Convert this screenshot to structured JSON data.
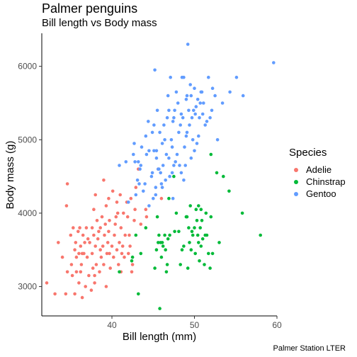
{
  "chart_data": {
    "type": "scatter",
    "title": "Palmer penguins",
    "subtitle": "Bill length vs Body mass",
    "caption": "Palmer Station LTER",
    "xlabel": "Bill length (mm)",
    "ylabel": "Body mass (g)",
    "xlim": [
      31.5,
      60
    ],
    "ylim": [
      2600,
      6450
    ],
    "xticks": [
      40,
      50,
      60
    ],
    "yticks": [
      3000,
      4000,
      5000,
      6000
    ],
    "grid": false,
    "legend": {
      "title": "Species",
      "position": "right"
    },
    "series": [
      {
        "name": "Adelie",
        "color": "#F8766D",
        "points": [
          [
            32.1,
            3050
          ],
          [
            33.1,
            2900
          ],
          [
            33.5,
            3600
          ],
          [
            34.0,
            3400
          ],
          [
            34.4,
            2900
          ],
          [
            34.5,
            4100
          ],
          [
            34.6,
            4400
          ],
          [
            34.6,
            3200
          ],
          [
            35.0,
            3700
          ],
          [
            35.1,
            3300
          ],
          [
            35.2,
            3150
          ],
          [
            35.3,
            3800
          ],
          [
            35.5,
            3500
          ],
          [
            35.5,
            2900
          ],
          [
            35.6,
            3600
          ],
          [
            35.7,
            3400
          ],
          [
            35.9,
            3750
          ],
          [
            36.0,
            3050
          ],
          [
            36.0,
            3450
          ],
          [
            36.1,
            3800
          ],
          [
            36.2,
            3550
          ],
          [
            36.2,
            3200
          ],
          [
            36.3,
            3300
          ],
          [
            36.4,
            2850
          ],
          [
            36.5,
            3700
          ],
          [
            36.6,
            3450
          ],
          [
            36.7,
            3600
          ],
          [
            36.8,
            3000
          ],
          [
            36.9,
            3800
          ],
          [
            37.0,
            3400
          ],
          [
            37.2,
            3150
          ],
          [
            37.3,
            3600
          ],
          [
            37.5,
            2950
          ],
          [
            37.6,
            3800
          ],
          [
            37.6,
            3450
          ],
          [
            37.7,
            3250
          ],
          [
            37.8,
            3700
          ],
          [
            37.8,
            4050
          ],
          [
            37.9,
            3050
          ],
          [
            38.0,
            3550
          ],
          [
            38.1,
            3300
          ],
          [
            38.2,
            3900
          ],
          [
            38.3,
            3650
          ],
          [
            38.5,
            3200
          ],
          [
            38.6,
            3500
          ],
          [
            38.6,
            3800
          ],
          [
            38.7,
            3400
          ],
          [
            38.8,
            3950
          ],
          [
            38.9,
            3550
          ],
          [
            39.0,
            3300
          ],
          [
            39.0,
            4450
          ],
          [
            39.1,
            3700
          ],
          [
            39.2,
            3850
          ],
          [
            39.3,
            3000
          ],
          [
            39.4,
            3450
          ],
          [
            39.5,
            3600
          ],
          [
            39.6,
            4200
          ],
          [
            39.6,
            3750
          ],
          [
            39.7,
            3900
          ],
          [
            39.8,
            3250
          ],
          [
            40.0,
            3550
          ],
          [
            40.1,
            4300
          ],
          [
            40.2,
            3400
          ],
          [
            40.3,
            3700
          ],
          [
            40.5,
            3950
          ],
          [
            40.6,
            4150
          ],
          [
            40.6,
            3500
          ],
          [
            40.8,
            3300
          ],
          [
            40.9,
            3600
          ],
          [
            41.0,
            4250
          ],
          [
            41.1,
            3800
          ],
          [
            41.1,
            3200
          ],
          [
            41.3,
            3550
          ],
          [
            41.4,
            4000
          ],
          [
            41.5,
            3400
          ],
          [
            41.6,
            3700
          ],
          [
            41.8,
            4150
          ],
          [
            41.9,
            3950
          ],
          [
            42.0,
            3450
          ],
          [
            42.2,
            3550
          ],
          [
            42.3,
            4200
          ],
          [
            42.5,
            3300
          ],
          [
            42.7,
            3900
          ],
          [
            42.8,
            4050
          ],
          [
            42.9,
            4350
          ],
          [
            43.2,
            4600
          ],
          [
            43.5,
            3850
          ],
          [
            44.1,
            4050
          ],
          [
            44.2,
            3950
          ],
          [
            45.6,
            4600
          ],
          [
            46.0,
            4200
          ],
          [
            35.7,
            3200
          ],
          [
            36.4,
            3450
          ],
          [
            37.1,
            3650
          ],
          [
            37.9,
            3150
          ],
          [
            38.4,
            3750
          ],
          [
            39.7,
            3450
          ],
          [
            40.4,
            3850
          ],
          [
            41.2,
            3450
          ],
          [
            42.1,
            3700
          ],
          [
            42.4,
            3200
          ],
          [
            39.3,
            4100
          ],
          [
            38.0,
            4250
          ],
          [
            40.7,
            4000
          ]
        ]
      },
      {
        "name": "Chinstrap",
        "color": "#00BA38",
        "points": [
          [
            40.9,
            3200
          ],
          [
            42.4,
            3350
          ],
          [
            42.5,
            3400
          ],
          [
            42.9,
            3700
          ],
          [
            43.2,
            2900
          ],
          [
            43.5,
            3450
          ],
          [
            44.1,
            3800
          ],
          [
            45.2,
            3250
          ],
          [
            45.4,
            3500
          ],
          [
            45.6,
            3600
          ],
          [
            45.7,
            3700
          ],
          [
            45.8,
            2700
          ],
          [
            45.9,
            3600
          ],
          [
            46.0,
            3400
          ],
          [
            46.1,
            3600
          ],
          [
            46.4,
            3700
          ],
          [
            46.5,
            3500
          ],
          [
            46.7,
            3300
          ],
          [
            46.8,
            3650
          ],
          [
            46.9,
            4200
          ],
          [
            47.0,
            3700
          ],
          [
            47.5,
            4500
          ],
          [
            48.1,
            3750
          ],
          [
            48.5,
            3500
          ],
          [
            49.0,
            3950
          ],
          [
            49.2,
            3250
          ],
          [
            49.3,
            3800
          ],
          [
            49.5,
            4100
          ],
          [
            49.6,
            3500
          ],
          [
            49.7,
            3750
          ],
          [
            49.8,
            3700
          ],
          [
            50.0,
            3800
          ],
          [
            50.1,
            3450
          ],
          [
            50.2,
            4050
          ],
          [
            50.3,
            3900
          ],
          [
            50.4,
            3700
          ],
          [
            50.5,
            4100
          ],
          [
            50.6,
            3350
          ],
          [
            50.7,
            3800
          ],
          [
            50.8,
            4050
          ],
          [
            50.9,
            3900
          ],
          [
            51.0,
            3650
          ],
          [
            51.3,
            3700
          ],
          [
            51.4,
            4000
          ],
          [
            51.5,
            3700
          ],
          [
            51.7,
            3450
          ],
          [
            51.9,
            3250
          ],
          [
            52.0,
            4800
          ],
          [
            52.2,
            3450
          ],
          [
            52.7,
            4550
          ],
          [
            53.5,
            4500
          ],
          [
            54.2,
            4300
          ],
          [
            55.8,
            4000
          ],
          [
            58.0,
            3700
          ],
          [
            46.2,
            3550
          ],
          [
            47.6,
            3750
          ],
          [
            48.3,
            3300
          ],
          [
            49.1,
            3950
          ],
          [
            50.5,
            3600
          ],
          [
            52.0,
            3950
          ],
          [
            45.5,
            3950
          ],
          [
            47.8,
            4000
          ],
          [
            51.2,
            3300
          ],
          [
            46.6,
            3200
          ],
          [
            50.8,
            3550
          ],
          [
            49.4,
            3600
          ],
          [
            53.0,
            3600
          ],
          [
            48.7,
            3550
          ]
        ]
      },
      {
        "name": "Gentoo",
        "color": "#619CFF",
        "points": [
          [
            40.9,
            4650
          ],
          [
            41.7,
            4700
          ],
          [
            42.0,
            4150
          ],
          [
            42.6,
            4800
          ],
          [
            42.7,
            4950
          ],
          [
            42.8,
            4700
          ],
          [
            43.3,
            4400
          ],
          [
            43.4,
            4600
          ],
          [
            43.5,
            4650
          ],
          [
            43.6,
            4900
          ],
          [
            44.0,
            4400
          ],
          [
            44.4,
            5250
          ],
          [
            44.5,
            4850
          ],
          [
            44.9,
            5100
          ],
          [
            45.1,
            4850
          ],
          [
            45.2,
            5950
          ],
          [
            45.3,
            4350
          ],
          [
            45.4,
            4750
          ],
          [
            45.5,
            5400
          ],
          [
            45.7,
            4600
          ],
          [
            45.8,
            5100
          ],
          [
            46.1,
            4950
          ],
          [
            46.2,
            4650
          ],
          [
            46.4,
            5000
          ],
          [
            46.5,
            4450
          ],
          [
            46.8,
            5600
          ],
          [
            46.9,
            4750
          ],
          [
            47.2,
            5000
          ],
          [
            47.3,
            4900
          ],
          [
            47.4,
            5250
          ],
          [
            47.5,
            4650
          ],
          [
            47.6,
            5400
          ],
          [
            47.7,
            4700
          ],
          [
            47.8,
            5650
          ],
          [
            48.1,
            5100
          ],
          [
            48.2,
            4650
          ],
          [
            48.4,
            5350
          ],
          [
            48.5,
            5850
          ],
          [
            48.6,
            5300
          ],
          [
            48.7,
            4450
          ],
          [
            49.0,
            5550
          ],
          [
            49.1,
            5100
          ],
          [
            49.2,
            6300
          ],
          [
            49.3,
            5400
          ],
          [
            49.4,
            5200
          ],
          [
            49.5,
            5750
          ],
          [
            49.6,
            5600
          ],
          [
            49.8,
            5000
          ],
          [
            49.9,
            5400
          ],
          [
            50.0,
            5700
          ],
          [
            50.1,
            5350
          ],
          [
            50.2,
            5450
          ],
          [
            50.4,
            5550
          ],
          [
            50.5,
            5050
          ],
          [
            50.7,
            5500
          ],
          [
            50.8,
            5650
          ],
          [
            51.1,
            5500
          ],
          [
            51.3,
            5200
          ],
          [
            51.5,
            5250
          ],
          [
            52.1,
            5400
          ],
          [
            52.2,
            5700
          ],
          [
            52.5,
            5600
          ],
          [
            53.4,
            5500
          ],
          [
            54.3,
            5650
          ],
          [
            55.1,
            5850
          ],
          [
            55.9,
            5600
          ],
          [
            59.6,
            6050
          ],
          [
            44.5,
            4100
          ],
          [
            45.0,
            4200
          ],
          [
            46.0,
            4400
          ],
          [
            47.0,
            4500
          ],
          [
            45.6,
            4600
          ],
          [
            46.3,
            5200
          ],
          [
            47.9,
            4800
          ],
          [
            48.9,
            4650
          ],
          [
            46.7,
            5300
          ],
          [
            44.1,
            5050
          ],
          [
            43.8,
            4300
          ],
          [
            45.9,
            4550
          ],
          [
            47.1,
            5850
          ],
          [
            48.8,
            4900
          ],
          [
            50.3,
            4950
          ],
          [
            49.7,
            5300
          ],
          [
            51.0,
            5350
          ],
          [
            44.8,
            4500
          ],
          [
            46.6,
            4800
          ],
          [
            43.1,
            4450
          ],
          [
            45.1,
            5200
          ],
          [
            48.3,
            5200
          ],
          [
            49.0,
            5050
          ],
          [
            47.3,
            4550
          ],
          [
            50.6,
            5300
          ],
          [
            52.8,
            5000
          ],
          [
            51.9,
            5300
          ],
          [
            46.9,
            5400
          ],
          [
            44.9,
            4550
          ],
          [
            47.5,
            5300
          ],
          [
            48.4,
            4550
          ],
          [
            45.3,
            4250
          ],
          [
            49.6,
            4750
          ],
          [
            50.9,
            5650
          ],
          [
            46.1,
            4350
          ],
          [
            42.9,
            4250
          ],
          [
            48.0,
            5500
          ],
          [
            44.2,
            4800
          ],
          [
            51.7,
            5850
          ],
          [
            50.0,
            4850
          ],
          [
            49.1,
            5600
          ],
          [
            45.4,
            4850
          ],
          [
            43.2,
            4700
          ],
          [
            48.7,
            5850
          ],
          [
            47.4,
            4200
          ]
        ]
      }
    ]
  }
}
